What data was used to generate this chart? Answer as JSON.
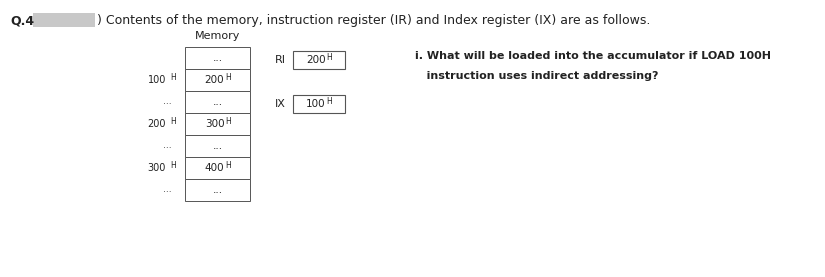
{
  "title_prefix": "Q.4",
  "title_highlight_color": "#c8c8c8",
  "title_text": ") Contents of the memory, instruction register (IR) and Index register (IX) are as follows.",
  "memory_label": "Memory",
  "memory_rows": [
    {
      "addr": null,
      "val": "..."
    },
    {
      "addr": "100 H",
      "val": "200H"
    },
    {
      "addr": "...",
      "val": "..."
    },
    {
      "addr": "200 H",
      "val": "300H"
    },
    {
      "addr": "...",
      "val": "..."
    },
    {
      "addr": "300 H",
      "val": "400H"
    },
    {
      "addr": "...",
      "val": "..."
    }
  ],
  "ri_label": "RI",
  "ri_value": "200H",
  "ix_label": "IX",
  "ix_value": "100H",
  "question_line1": "i. What will be loaded into the accumulator if LOAD 100H",
  "question_line2": "   instruction uses indirect addressing?",
  "bg_color": "#ffffff",
  "box_edge_color": "#555555",
  "text_color": "#222222",
  "title_fontsize": 9.0,
  "body_fontsize": 8.0,
  "cell_fontsize": 7.5,
  "subscript_size": 5.5
}
